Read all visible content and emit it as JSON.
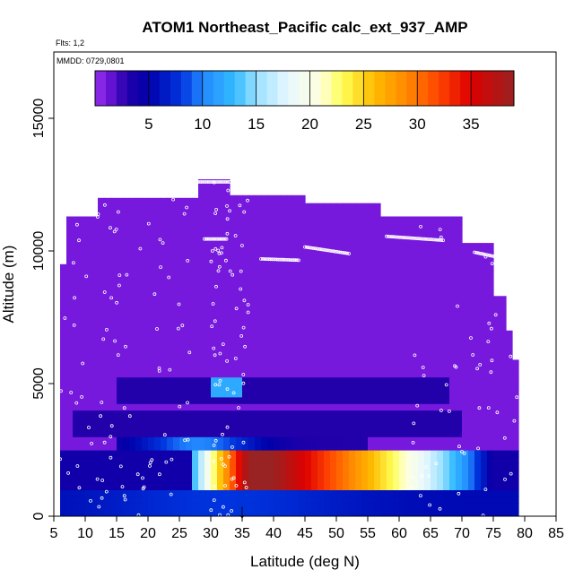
{
  "chart_data": {
    "type": "heatmap",
    "title": "ATOM1 Northeast_Pacific calc_ext_937_AMP",
    "flights_note": "Flts: 1,2",
    "dates_note": "MMDD: 0729,0801",
    "xlabel": "Latitude (deg N)",
    "ylabel": "Altitude (m)",
    "xlim": [
      5,
      85
    ],
    "ylim": [
      0,
      17500
    ],
    "x_ticks": [
      "5",
      "10",
      "15",
      "20",
      "25",
      "30",
      "35",
      "40",
      "45",
      "50",
      "55",
      "60",
      "65",
      "70",
      "75",
      "80",
      "85"
    ],
    "y_ticks": [
      "0",
      "5000",
      "10000",
      "15000"
    ],
    "colorbar": {
      "range": [
        0,
        39
      ],
      "ticks": [
        "5",
        "10",
        "15",
        "20",
        "25",
        "30",
        "35"
      ]
    },
    "marker": {
      "x": 35,
      "symbol": "↓"
    },
    "profiles": [
      {
        "lat_range": [
          5,
          79
        ],
        "alt_range": [
          0,
          12700
        ],
        "value_background": 1
      },
      {
        "layer": "surface",
        "lat_range": [
          5,
          79
        ],
        "alt_range": [
          0,
          1000
        ],
        "value": 7
      },
      {
        "layer": "aerosol",
        "lat_range": [
          27,
          75
        ],
        "alt_range": [
          1000,
          2300
        ],
        "peak_lat": 36,
        "peak_value": 39
      },
      {
        "layer": "mid",
        "lat_range": [
          22,
          50
        ],
        "alt_range": [
          2300,
          3100
        ],
        "value": 10
      },
      {
        "layer": "upper",
        "lat_range": [
          30,
          35
        ],
        "alt_range": [
          4800,
          5300
        ],
        "value": 12
      }
    ],
    "grid": false,
    "legend_position": "top"
  }
}
